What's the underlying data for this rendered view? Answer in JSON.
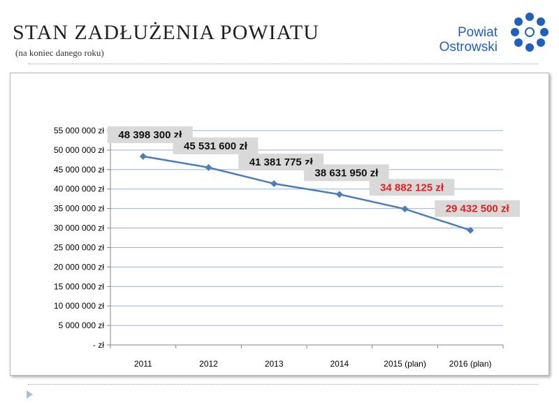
{
  "header": {
    "title": "STAN ZADŁUŻENIA POWIATU",
    "subtitle": "(na koniec danego roku)",
    "logo_line1": "Powiat",
    "logo_line2": "Ostrowski",
    "logo_color": "#1f5fbf"
  },
  "chart_data": {
    "type": "line",
    "title": "",
    "xlabel": "",
    "ylabel": "",
    "categories": [
      "2011",
      "2012",
      "2013",
      "2014",
      "2015 (plan)",
      "2016 (plan)"
    ],
    "series": [
      {
        "values": [
          48398300,
          45531600,
          41381775,
          38631950,
          34882125,
          29432500
        ]
      }
    ],
    "data_labels": [
      "48 398 300 zł",
      "45 531 600 zł",
      "41 381 775 zł",
      "38 631 950 zł",
      "34 882 125 zł",
      "29 432 500 zł"
    ],
    "data_label_colors": [
      "#111111",
      "#111111",
      "#111111",
      "#111111",
      "#e02020",
      "#e02020"
    ],
    "y_ticks": [
      0,
      5000000,
      10000000,
      15000000,
      20000000,
      25000000,
      30000000,
      35000000,
      40000000,
      45000000,
      50000000,
      55000000
    ],
    "y_tick_labels": [
      "- zł",
      "5 000 000 zł",
      "10 000 000 zł",
      "15 000 000 zł",
      "20 000 000 zł",
      "25 000 000 zł",
      "30 000 000 zł",
      "35 000 000 zł",
      "40 000 000 zł",
      "45 000 000 zł",
      "50 000 000 zł",
      "55 000 000 zł"
    ],
    "ylim": [
      0,
      55000000
    ],
    "grid": true,
    "legend": "none",
    "line_color": "#4a7ebb",
    "grid_color": "#8db3e2",
    "label_bg_color": "#d9d9d9"
  }
}
